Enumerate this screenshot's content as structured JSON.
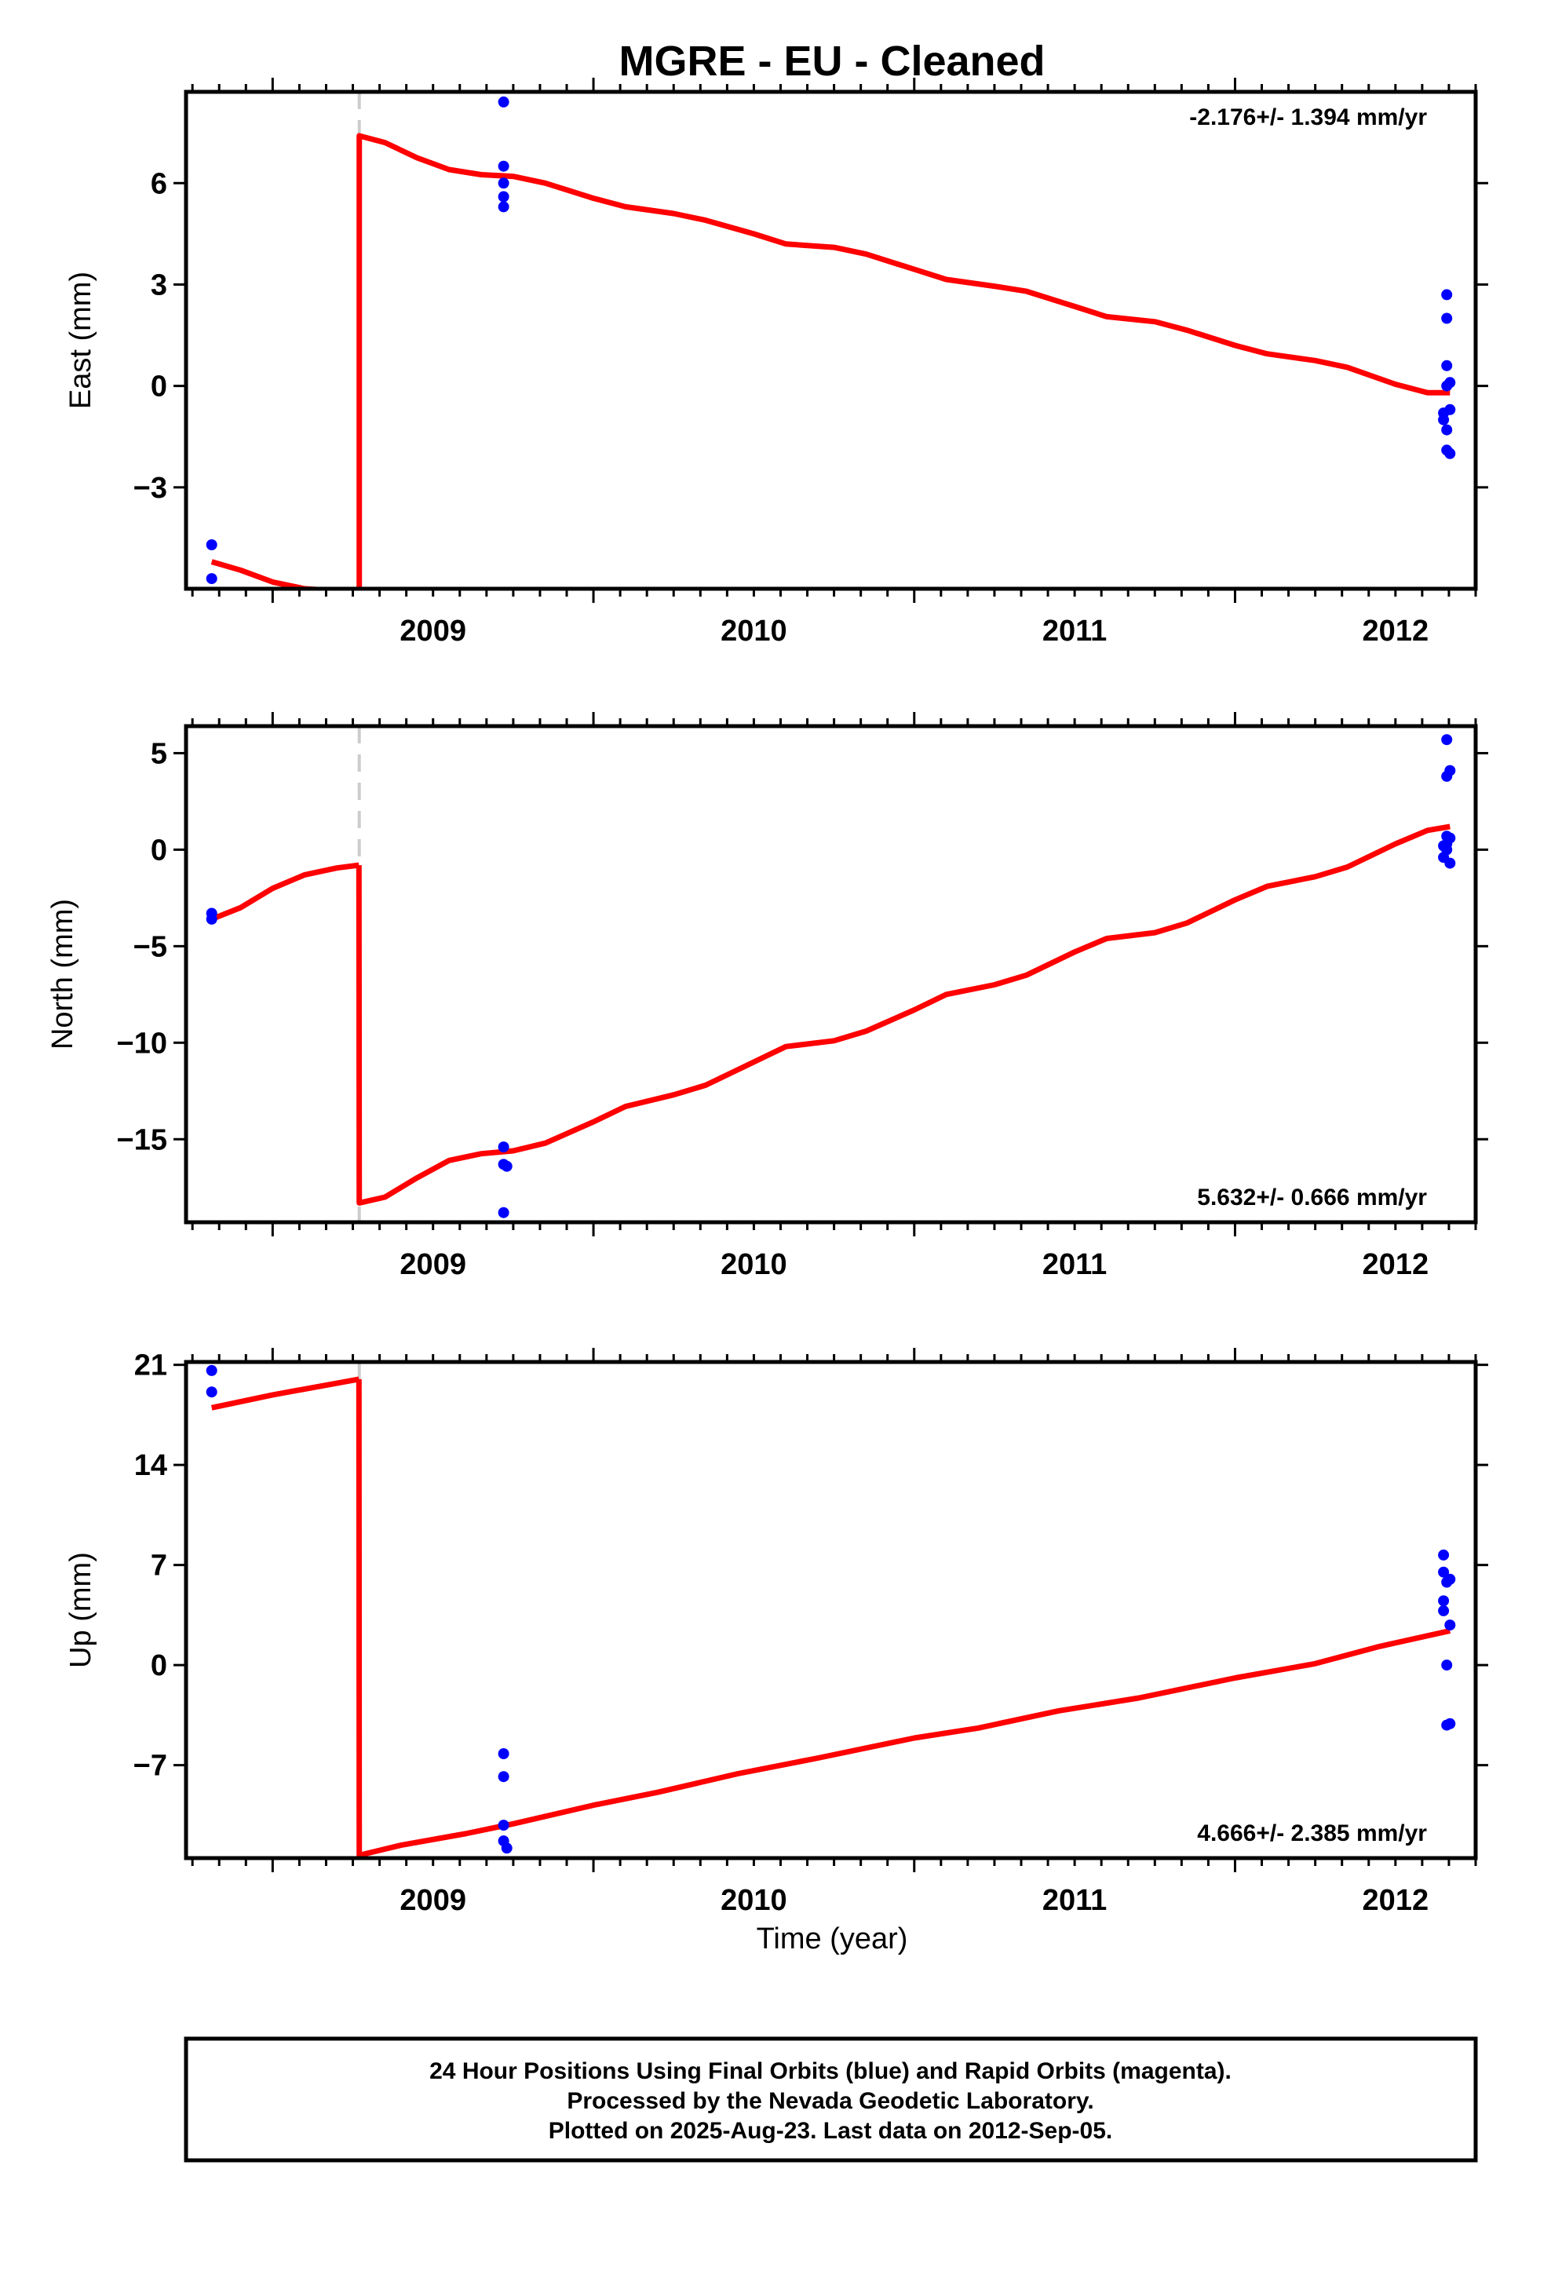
{
  "chart_data": {
    "title": "MGRE  - EU - Cleaned",
    "xlabel": "Time (year)",
    "x_ticks": [
      2009,
      2010,
      2011,
      2012
    ],
    "xlim": [
      2008.73,
      2012.75
    ],
    "offset_epoch": 2009.27,
    "colors": {
      "data": "#0000ff",
      "model": "#ff0000",
      "offset": "#cccccc",
      "frame": "#000000"
    },
    "panels": [
      {
        "type": "scatter",
        "ylabel": "East (mm)",
        "ylim": [
          -6.0,
          8.7
        ],
        "y_ticks": [
          6,
          3,
          0,
          -3
        ],
        "y_tick_labels": [
          "6",
          "3",
          "0",
          "−3"
        ],
        "rate_label": "-2.176+/- 1.394 mm/yr",
        "rate_position": "top-right",
        "points": [
          [
            2008.81,
            -4.7
          ],
          [
            2008.81,
            -5.7
          ],
          [
            2009.72,
            8.4
          ],
          [
            2009.72,
            6.5
          ],
          [
            2009.72,
            6.0
          ],
          [
            2009.72,
            5.6
          ],
          [
            2009.72,
            5.3
          ],
          [
            2012.66,
            2.7
          ],
          [
            2012.66,
            2.0
          ],
          [
            2012.66,
            0.6
          ],
          [
            2012.66,
            0.0
          ],
          [
            2012.67,
            0.1
          ],
          [
            2012.65,
            -0.8
          ],
          [
            2012.67,
            -0.7
          ],
          [
            2012.65,
            -1.0
          ],
          [
            2012.66,
            -1.3
          ],
          [
            2012.66,
            -1.9
          ],
          [
            2012.67,
            -2.0
          ]
        ],
        "model": [
          [
            [
              2008.81,
              -5.2
            ],
            [
              2008.9,
              -5.45
            ],
            [
              2009.0,
              -5.8
            ],
            [
              2009.1,
              -6.0
            ],
            [
              2009.269,
              -6.1
            ]
          ],
          [
            [
              2009.27,
              -6.0
            ],
            [
              2009.27,
              7.4
            ],
            [
              2009.35,
              7.2
            ],
            [
              2009.45,
              6.75
            ],
            [
              2009.55,
              6.4
            ],
            [
              2009.65,
              6.25
            ],
            [
              2009.75,
              6.2
            ],
            [
              2009.85,
              6.0
            ],
            [
              2010.0,
              5.55
            ],
            [
              2010.1,
              5.3
            ],
            [
              2010.25,
              5.1
            ],
            [
              2010.35,
              4.9
            ],
            [
              2010.5,
              4.5
            ],
            [
              2010.6,
              4.2
            ],
            [
              2010.75,
              4.1
            ],
            [
              2010.85,
              3.9
            ],
            [
              2011.0,
              3.45
            ],
            [
              2011.1,
              3.15
            ],
            [
              2011.25,
              2.95
            ],
            [
              2011.35,
              2.8
            ],
            [
              2011.5,
              2.35
            ],
            [
              2011.6,
              2.05
            ],
            [
              2011.75,
              1.9
            ],
            [
              2011.85,
              1.65
            ],
            [
              2012.0,
              1.2
            ],
            [
              2012.1,
              0.95
            ],
            [
              2012.25,
              0.75
            ],
            [
              2012.35,
              0.55
            ],
            [
              2012.5,
              0.05
            ],
            [
              2012.6,
              -0.2
            ],
            [
              2012.67,
              -0.2
            ]
          ]
        ]
      },
      {
        "type": "scatter",
        "ylabel": "North (mm)",
        "ylim": [
          -19.3,
          6.4
        ],
        "y_ticks": [
          5,
          0,
          -5,
          -10,
          -15
        ],
        "y_tick_labels": [
          "5",
          "0",
          "−5",
          "−10",
          "−15"
        ],
        "rate_label": "5.632+/- 0.666 mm/yr",
        "rate_position": "bottom-right",
        "points": [
          [
            2008.81,
            -3.3
          ],
          [
            2008.81,
            -3.6
          ],
          [
            2009.72,
            -15.4
          ],
          [
            2009.72,
            -16.3
          ],
          [
            2009.73,
            -16.4
          ],
          [
            2009.72,
            -18.8
          ],
          [
            2012.66,
            5.7
          ],
          [
            2012.67,
            4.1
          ],
          [
            2012.66,
            3.8
          ],
          [
            2012.66,
            0.7
          ],
          [
            2012.67,
            0.6
          ],
          [
            2012.66,
            0.3
          ],
          [
            2012.65,
            0.2
          ],
          [
            2012.66,
            0.0
          ],
          [
            2012.65,
            -0.4
          ],
          [
            2012.67,
            -0.7
          ]
        ],
        "model": [
          [
            [
              2008.81,
              -3.6
            ],
            [
              2008.9,
              -3.0
            ],
            [
              2009.0,
              -2.0
            ],
            [
              2009.1,
              -1.3
            ],
            [
              2009.2,
              -0.95
            ],
            [
              2009.269,
              -0.8
            ]
          ],
          [
            [
              2009.269,
              -0.8
            ],
            [
              2009.27,
              -18.3
            ],
            [
              2009.35,
              -18.0
            ],
            [
              2009.45,
              -17.0
            ],
            [
              2009.55,
              -16.1
            ],
            [
              2009.65,
              -15.75
            ],
            [
              2009.75,
              -15.6
            ],
            [
              2009.85,
              -15.2
            ],
            [
              2010.0,
              -14.1
            ],
            [
              2010.1,
              -13.3
            ],
            [
              2010.25,
              -12.7
            ],
            [
              2010.35,
              -12.2
            ],
            [
              2010.5,
              -11.0
            ],
            [
              2010.6,
              -10.2
            ],
            [
              2010.75,
              -9.9
            ],
            [
              2010.85,
              -9.4
            ],
            [
              2011.0,
              -8.3
            ],
            [
              2011.1,
              -7.5
            ],
            [
              2011.25,
              -7.0
            ],
            [
              2011.35,
              -6.5
            ],
            [
              2011.5,
              -5.3
            ],
            [
              2011.6,
              -4.6
            ],
            [
              2011.75,
              -4.3
            ],
            [
              2011.85,
              -3.8
            ],
            [
              2012.0,
              -2.6
            ],
            [
              2012.1,
              -1.9
            ],
            [
              2012.25,
              -1.4
            ],
            [
              2012.35,
              -0.9
            ],
            [
              2012.5,
              0.3
            ],
            [
              2012.6,
              1.0
            ],
            [
              2012.67,
              1.2
            ]
          ]
        ]
      },
      {
        "type": "scatter",
        "ylabel": "Up (mm)",
        "ylim": [
          -13.5,
          21.2
        ],
        "y_ticks": [
          21,
          14,
          7,
          0,
          -7
        ],
        "y_tick_labels": [
          "21",
          "14",
          "7",
          "0",
          "−7"
        ],
        "rate_label": "4.666+/- 2.385 mm/yr",
        "rate_position": "bottom-right",
        "points": [
          [
            2008.81,
            20.6
          ],
          [
            2008.81,
            19.1
          ],
          [
            2009.72,
            -6.2
          ],
          [
            2009.72,
            -7.8
          ],
          [
            2009.72,
            -11.2
          ],
          [
            2009.72,
            -12.3
          ],
          [
            2009.73,
            -12.8
          ],
          [
            2012.65,
            7.7
          ],
          [
            2012.65,
            6.5
          ],
          [
            2012.67,
            6.0
          ],
          [
            2012.66,
            5.8
          ],
          [
            2012.65,
            4.5
          ],
          [
            2012.65,
            3.8
          ],
          [
            2012.67,
            2.8
          ],
          [
            2012.66,
            0.0
          ],
          [
            2012.66,
            -4.2
          ],
          [
            2012.67,
            -4.1
          ]
        ],
        "model": [
          [
            [
              2008.81,
              18.0
            ],
            [
              2009.0,
              18.9
            ],
            [
              2009.269,
              20.0
            ]
          ],
          [
            [
              2009.269,
              20.0
            ],
            [
              2009.27,
              -13.3
            ],
            [
              2009.4,
              -12.6
            ],
            [
              2009.6,
              -11.8
            ],
            [
              2009.75,
              -11.1
            ],
            [
              2010.0,
              -9.8
            ],
            [
              2010.2,
              -8.9
            ],
            [
              2010.45,
              -7.6
            ],
            [
              2010.7,
              -6.5
            ],
            [
              2011.0,
              -5.1
            ],
            [
              2011.2,
              -4.4
            ],
            [
              2011.45,
              -3.2
            ],
            [
              2011.7,
              -2.3
            ],
            [
              2012.0,
              -0.9
            ],
            [
              2012.25,
              0.1
            ],
            [
              2012.45,
              1.3
            ],
            [
              2012.67,
              2.4
            ]
          ]
        ]
      }
    ]
  },
  "caption": {
    "line1": "24 Hour Positions Using Final Orbits (blue) and Rapid Orbits (magenta).",
    "line2": "Processed by the Nevada Geodetic Laboratory.",
    "line3": "Plotted on 2025-Aug-23. Last data on 2012-Sep-05."
  }
}
